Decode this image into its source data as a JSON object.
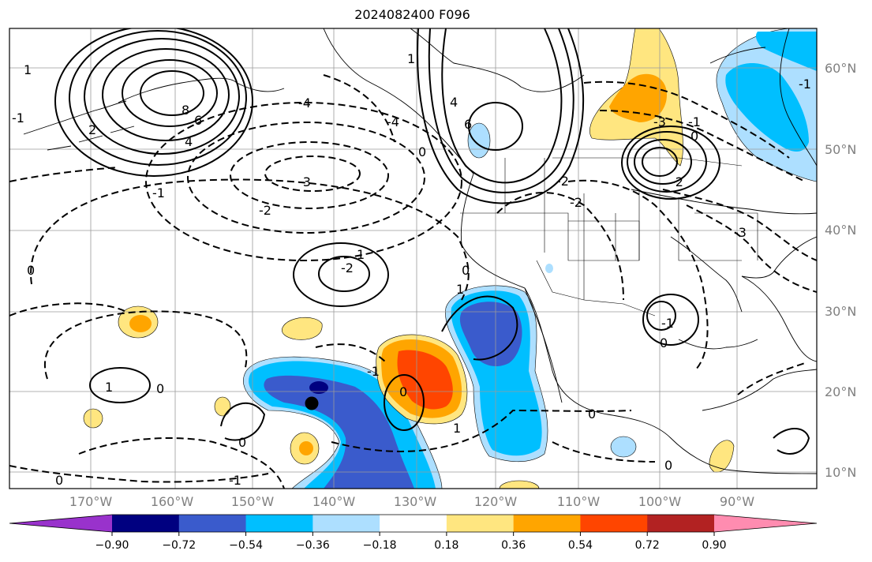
{
  "title": "2024082400 F096",
  "lat_labels": [
    "60°N",
    "50°N",
    "40°N",
    "30°N",
    "20°N",
    "10°N"
  ],
  "lon_labels": [
    "170°W",
    "160°W",
    "150°W",
    "140°W",
    "130°W",
    "120°W",
    "110°W",
    "100°W",
    "90°W"
  ],
  "colorbar": {
    "ticks": [
      "−0.90",
      "−0.72",
      "−0.54",
      "−0.36",
      "−0.18",
      "0.18",
      "0.36",
      "0.54",
      "0.72",
      "0.90"
    ],
    "colors": [
      "#9932CC",
      "#000080",
      "#3A5BCC",
      "#00BFFF",
      "#ADDFFF",
      "#FFFFFF",
      "#FFE680",
      "#FFA500",
      "#FF4500",
      "#B22222",
      "#FF8CB0"
    ]
  },
  "contour_labels": [
    {
      "text": "-1"
    },
    {
      "text": "-2"
    },
    {
      "text": "-3"
    },
    {
      "text": "-4"
    },
    {
      "text": "-2"
    },
    {
      "text": "-3"
    },
    {
      "text": "0"
    },
    {
      "text": "-1"
    },
    {
      "text": "-2"
    },
    {
      "text": "-2"
    },
    {
      "text": "-2"
    },
    {
      "text": "-3"
    },
    {
      "text": "0"
    },
    {
      "text": "0"
    },
    {
      "text": "0"
    },
    {
      "text": "1"
    },
    {
      "text": "1"
    },
    {
      "text": "0"
    },
    {
      "text": "0"
    },
    {
      "text": "0"
    },
    {
      "text": "0"
    },
    {
      "text": "-1"
    },
    {
      "text": "1"
    },
    {
      "text": "-1"
    },
    {
      "text": "0"
    },
    {
      "text": "1"
    },
    {
      "text": "-1"
    },
    {
      "text": "6"
    },
    {
      "text": "4"
    },
    {
      "text": "-4"
    },
    {
      "text": "0"
    },
    {
      "text": "1"
    },
    {
      "text": "8"
    },
    {
      "text": "6"
    },
    {
      "text": "4"
    },
    {
      "text": "2"
    },
    {
      "text": "1"
    },
    {
      "text": "-1"
    },
    {
      "text": "0"
    },
    {
      "text": "-1"
    }
  ],
  "marker": "storm-center"
}
